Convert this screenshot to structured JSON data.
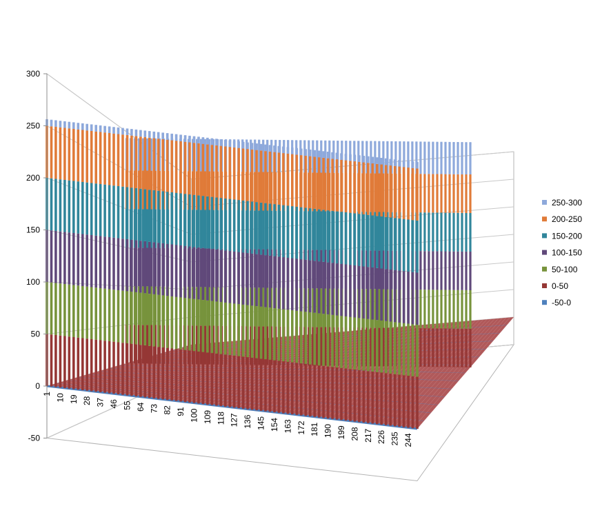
{
  "chart_data": {
    "type": "surface",
    "title": "",
    "xlabel": "",
    "ylabel": "",
    "zlim": [
      -50,
      300
    ],
    "z_ticks": [
      -50,
      0,
      50,
      100,
      150,
      200,
      250,
      300
    ],
    "x_tick_labels": [
      "1",
      "10",
      "19",
      "28",
      "37",
      "46",
      "55",
      "64",
      "73",
      "82",
      "91",
      "100",
      "109",
      "118",
      "127",
      "136",
      "145",
      "154",
      "163",
      "172",
      "181",
      "190",
      "199",
      "208",
      "217",
      "226",
      "235",
      "244"
    ],
    "x_range": [
      1,
      250
    ],
    "grid": true,
    "legend_position": "right",
    "value_bands": [
      {
        "name": "250-300",
        "color": "#8EA9DB"
      },
      {
        "name": "200-250",
        "color": "#E07B39"
      },
      {
        "name": "150-200",
        "color": "#31869B"
      },
      {
        "name": "100-150",
        "color": "#60497A"
      },
      {
        "name": "50-100",
        "color": "#77933C"
      },
      {
        "name": "0-50",
        "color": "#953735"
      },
      {
        "name": "-50-0",
        "color": "#4F81BD"
      }
    ],
    "spike_peak_front_row": 255,
    "spike_peak_back_row": 290,
    "spike_interval": 3,
    "baseline": 0
  }
}
